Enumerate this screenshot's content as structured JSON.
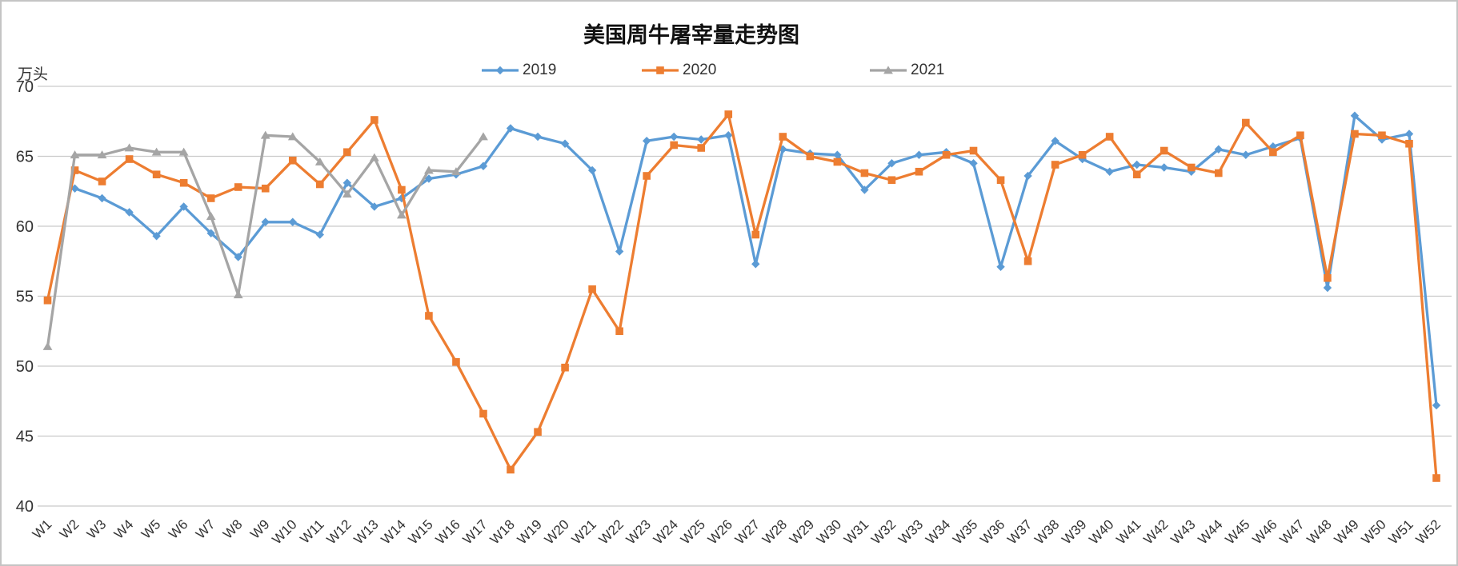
{
  "page": {
    "border_color": "#c4c4c4",
    "background": "#ffffff"
  },
  "chart_data": {
    "type": "line",
    "title": "美国周牛屠宰量走势图",
    "ylabel": "万头",
    "xlabel": "",
    "ylim": [
      40,
      70
    ],
    "y_tick_step": 5,
    "y_ticks": [
      40,
      45,
      50,
      55,
      60,
      65,
      70
    ],
    "grid": true,
    "legend_position": "top-center",
    "categories": [
      "W1",
      "W2",
      "W3",
      "W4",
      "W5",
      "W6",
      "W7",
      "W8",
      "W9",
      "W10",
      "W11",
      "W12",
      "W13",
      "W14",
      "W15",
      "W16",
      "W17",
      "W18",
      "W19",
      "W20",
      "W21",
      "W22",
      "W23",
      "W24",
      "W25",
      "W26",
      "W27",
      "W28",
      "W29",
      "W30",
      "W31",
      "W32",
      "W33",
      "W34",
      "W35",
      "W36",
      "W37",
      "W38",
      "W39",
      "W40",
      "W41",
      "W42",
      "W43",
      "W44",
      "W45",
      "W46",
      "W47",
      "W48",
      "W49",
      "W50",
      "W51",
      "W52"
    ],
    "series": [
      {
        "name": "2019",
        "color": "#5B9BD5",
        "marker": "diamond",
        "values": [
          null,
          62.7,
          62.0,
          61.0,
          59.3,
          61.4,
          59.5,
          57.8,
          60.3,
          60.3,
          59.4,
          63.1,
          61.4,
          62.0,
          63.4,
          63.7,
          64.3,
          67.0,
          66.4,
          65.9,
          64.0,
          58.2,
          66.1,
          66.4,
          66.2,
          66.5,
          57.3,
          65.5,
          65.2,
          65.1,
          62.6,
          64.5,
          65.1,
          65.3,
          64.5,
          57.1,
          63.6,
          66.1,
          64.8,
          63.9,
          64.4,
          64.2,
          63.9,
          65.5,
          65.1,
          65.7,
          66.3,
          55.6,
          67.9,
          66.2,
          66.6,
          47.2
        ]
      },
      {
        "name": "2020",
        "color": "#ED7D31",
        "marker": "square",
        "values": [
          54.7,
          64.0,
          63.2,
          64.8,
          63.7,
          63.1,
          62.0,
          62.8,
          62.7,
          64.7,
          63.0,
          65.3,
          67.6,
          62.6,
          53.6,
          50.3,
          46.6,
          42.6,
          45.3,
          49.9,
          55.5,
          52.5,
          63.6,
          65.8,
          65.6,
          68.0,
          59.4,
          66.4,
          65.0,
          64.6,
          63.8,
          63.3,
          63.9,
          65.1,
          65.4,
          63.3,
          57.5,
          64.4,
          65.1,
          66.4,
          63.7,
          65.4,
          64.2,
          63.8,
          67.4,
          65.3,
          66.5,
          56.3,
          66.6,
          66.5,
          65.9,
          42.0
        ]
      },
      {
        "name": "2021",
        "color": "#A5A5A5",
        "marker": "triangle",
        "values": [
          51.4,
          65.1,
          65.1,
          65.6,
          65.3,
          65.3,
          60.7,
          55.1,
          66.5,
          66.4,
          64.6,
          62.3,
          64.9,
          60.8,
          64.0,
          63.9,
          66.4,
          null,
          null,
          null,
          null,
          null,
          null,
          null,
          null,
          null,
          null,
          null,
          null,
          null,
          null,
          null,
          null,
          null,
          null,
          null,
          null,
          null,
          null,
          null,
          null,
          null,
          null,
          null,
          null,
          null,
          null,
          null,
          null,
          null,
          null,
          null
        ]
      }
    ]
  }
}
